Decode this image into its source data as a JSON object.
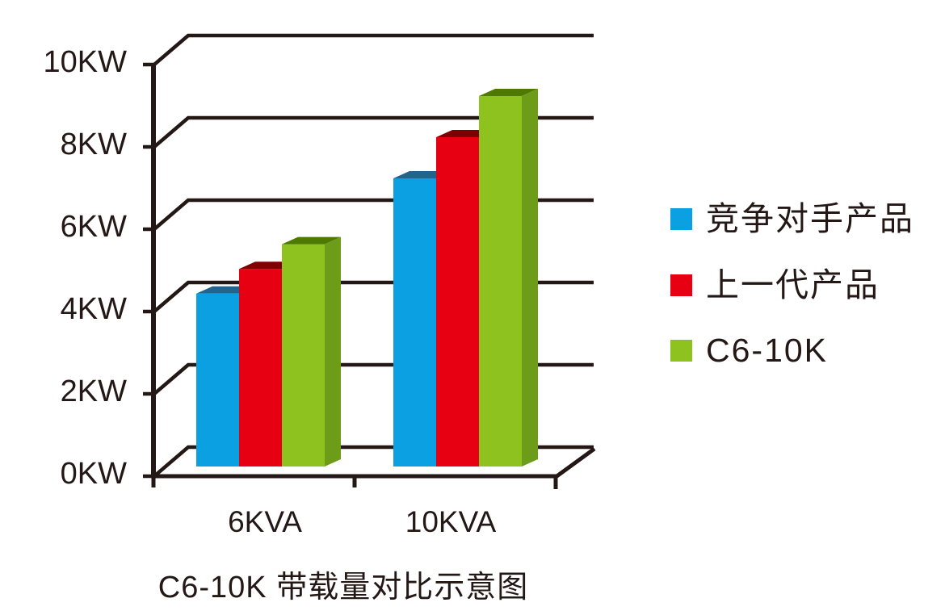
{
  "chart_data": {
    "type": "bar",
    "style": "3d-extruded-columns",
    "title": "C6-10K 带载量对比示意图",
    "categories": [
      "6KVA",
      "10KVA"
    ],
    "series": [
      {
        "name": "竞争对手产品",
        "values": [
          4.2,
          7.0
        ],
        "color": "#0AA0E2",
        "color_top": "#21648D",
        "color_side": "#1B7FB4"
      },
      {
        "name": "上一代产品",
        "values": [
          4.8,
          8.0
        ],
        "color": "#E60012",
        "color_top": "#7E0100",
        "color_side": "#B00010"
      },
      {
        "name": "C6-10K",
        "values": [
          5.4,
          9.0
        ],
        "color": "#8EC31F",
        "color_top": "#4E7A02",
        "color_side": "#6D9C18"
      }
    ],
    "y_tick_labels": [
      "0KW",
      "2KW",
      "4KW",
      "6KW",
      "8KW",
      "10KW"
    ],
    "y_tick_values": [
      0,
      2,
      4,
      6,
      8,
      10
    ],
    "ylim": [
      0,
      10
    ],
    "y_unit": "KW",
    "x_unit": "KVA",
    "legend_position": "right",
    "grid": true,
    "axis_color": "#231815",
    "text_color": "#231815",
    "background_color": "#FFFFFF"
  }
}
